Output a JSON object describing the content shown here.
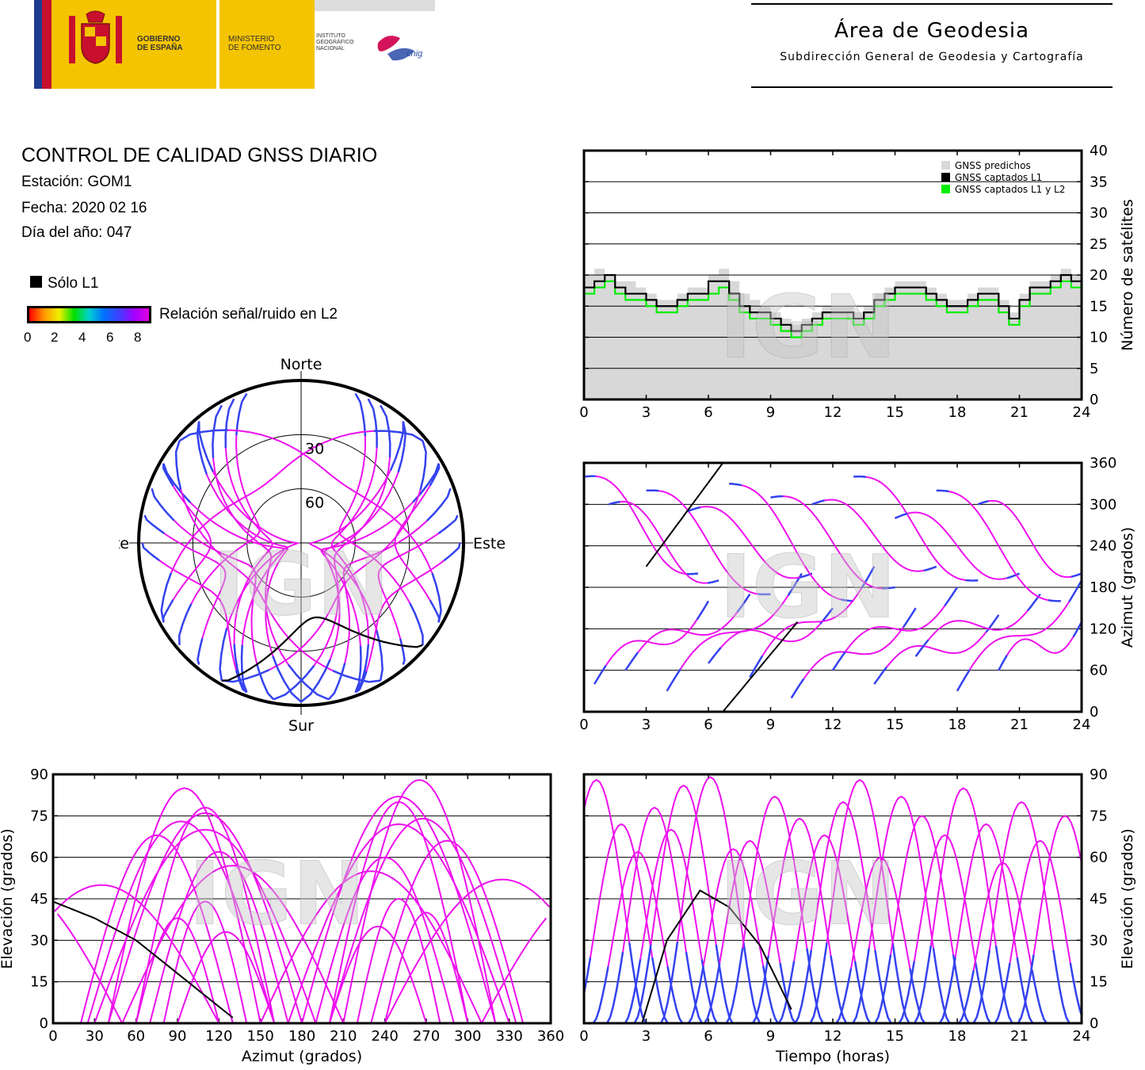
{
  "header": {
    "gobierno": [
      "GOBIERNO",
      "DE ESPAÑA"
    ],
    "ministerio": [
      "MINISTERIO",
      "DE FOMENTO"
    ],
    "instituto": [
      "INSTITUTO",
      "GEOGRÁFICO",
      "NACIONAL"
    ],
    "cnig": "cnig",
    "area_title": "Área de Geodesia",
    "area_subtitle": "Subdirección General de Geodesia y Cartografía",
    "colors": {
      "flag_red": "#c8102e",
      "flag_yellow": "#ffc400",
      "logo_yellow": "#f5c400",
      "eu_blue": "#1d3c8f"
    }
  },
  "info": {
    "title": "CONTROL DE CALIDAD GNSS DIARIO",
    "station": "Estación: GOM1",
    "date": "Fecha: 2020 02 16",
    "doy": "Día del año: 047"
  },
  "legend": {
    "solo_l1": "Sólo L1",
    "snr_label": "Relación señal/ruido en L2",
    "snr_ticks": [
      "0",
      "2",
      "4",
      "6",
      "8"
    ],
    "snr_colors": [
      "#ff0000",
      "#ff9900",
      "#f0f000",
      "#00e000",
      "#00d0d0",
      "#0070ff",
      "#4040ff",
      "#a000ff",
      "#e000e0"
    ]
  },
  "watermark": "IGN",
  "chart_data": [
    {
      "id": "satellites",
      "type": "area",
      "x_ticks": [
        "0",
        "3",
        "6",
        "9",
        "12",
        "15",
        "18",
        "21",
        "24"
      ],
      "y_ticks": [
        "0",
        "5",
        "10",
        "15",
        "20",
        "25",
        "30",
        "35",
        "40"
      ],
      "xlim": [
        0,
        24
      ],
      "ylim": [
        0,
        40
      ],
      "ylabel": "Número de satélites",
      "legend": [
        "GNSS predichos",
        "GNSS captados L1",
        "GNSS captados L1 y L2"
      ],
      "colors": {
        "predicted": "#d8d8d8",
        "l1": "#000000",
        "l1l2": "#00ee00"
      },
      "x": [
        0,
        0.5,
        1,
        1.5,
        2,
        2.5,
        3,
        3.5,
        4,
        4.5,
        5,
        5.5,
        6,
        6.5,
        7,
        7.5,
        8,
        8.5,
        9,
        9.5,
        10,
        10.5,
        11,
        11.5,
        12,
        12.5,
        13,
        13.5,
        14,
        14.5,
        15,
        15.5,
        16,
        16.5,
        17,
        17.5,
        18,
        18.5,
        19,
        19.5,
        20,
        20.5,
        21,
        21.5,
        22,
        22.5,
        23,
        23.5,
        24
      ],
      "predicted": [
        20,
        21,
        20,
        19,
        19,
        18,
        17,
        16,
        16,
        17,
        18,
        18,
        20,
        21,
        19,
        17,
        16,
        15,
        14,
        13,
        12,
        13,
        14,
        15,
        15,
        15,
        14,
        15,
        17,
        18,
        19,
        19,
        19,
        18,
        17,
        16,
        16,
        17,
        18,
        18,
        16,
        14,
        17,
        19,
        19,
        20,
        21,
        20,
        19
      ],
      "l1": [
        18,
        19,
        20,
        18,
        17,
        17,
        16,
        15,
        15,
        16,
        17,
        17,
        19,
        19,
        17,
        15,
        14,
        14,
        13,
        12,
        11,
        12,
        13,
        14,
        14,
        14,
        13,
        14,
        16,
        17,
        18,
        18,
        18,
        17,
        16,
        15,
        15,
        16,
        17,
        17,
        15,
        13,
        16,
        18,
        18,
        19,
        20,
        19,
        18
      ],
      "l1l2": [
        17,
        18,
        19,
        17,
        16,
        16,
        15,
        14,
        14,
        15,
        16,
        16,
        17,
        18,
        16,
        14,
        13,
        13,
        12,
        11,
        10,
        11,
        12,
        13,
        13,
        13,
        12,
        13,
        15,
        16,
        17,
        17,
        17,
        16,
        15,
        14,
        14,
        15,
        16,
        16,
        14,
        12,
        15,
        17,
        17,
        18,
        19,
        18,
        17
      ]
    },
    {
      "id": "skyplot",
      "type": "scatter",
      "labels": {
        "north": "Norte",
        "south": "Sur",
        "east": "Este",
        "west": "Oeste",
        "r30": "30",
        "r60": "60"
      },
      "tracks": [
        {
          "az0": 320,
          "az1": 210,
          "elmax": 88
        },
        {
          "az0": 300,
          "az1": 200,
          "elmax": 80
        },
        {
          "az0": 330,
          "az1": 170,
          "elmax": 72
        },
        {
          "az0": 40,
          "az1": 150,
          "elmax": 85
        },
        {
          "az0": 60,
          "az1": 160,
          "elmax": 78
        },
        {
          "az0": 30,
          "az1": 190,
          "elmax": 70
        },
        {
          "az0": 290,
          "az1": 190,
          "elmax": 60
        },
        {
          "az0": 70,
          "az1": 170,
          "elmax": 62
        },
        {
          "az0": 310,
          "az1": 150,
          "elmax": 55
        },
        {
          "az0": 50,
          "az1": 210,
          "elmax": 57
        },
        {
          "az0": 280,
          "az1": 220,
          "elmax": 45
        },
        {
          "az0": 80,
          "az1": 140,
          "elmax": 44
        },
        {
          "az0": 340,
          "az1": 230,
          "elmax": 66
        },
        {
          "az0": 20,
          "az1": 130,
          "elmax": 68
        },
        {
          "az0": 300,
          "az1": 240,
          "elmax": 40
        },
        {
          "az0": 60,
          "az1": 120,
          "elmax": 38
        },
        {
          "az0": 320,
          "az1": 180,
          "elmax": 82
        },
        {
          "az0": 40,
          "az1": 180,
          "elmax": 76
        },
        {
          "az0": 270,
          "az1": 200,
          "elmax": 35
        },
        {
          "az0": 90,
          "az1": 160,
          "elmax": 33
        },
        {
          "az0": 310,
          "az1": 120,
          "elmax": 50
        },
        {
          "az0": 50,
          "az1": 240,
          "elmax": 52
        },
        {
          "az0": 335,
          "az1": 200,
          "elmax": 74
        },
        {
          "az0": 25,
          "az1": 160,
          "elmax": 73
        }
      ],
      "l1_track": {
        "az0": 210,
        "az1": 130,
        "elmax": 48
      }
    },
    {
      "id": "azimuth_time",
      "type": "scatter",
      "x_ticks": [
        "0",
        "3",
        "6",
        "9",
        "12",
        "15",
        "18",
        "21",
        "24"
      ],
      "y_ticks": [
        "0",
        "60",
        "120",
        "180",
        "240",
        "300",
        "360"
      ],
      "xlim": [
        0,
        24
      ],
      "ylim": [
        0,
        360
      ],
      "ylabel": "Azimut (grados)",
      "tracks": [
        {
          "t0": 0.0,
          "t1": 5.5,
          "a0": 340,
          "a1": 200
        },
        {
          "t0": 0.5,
          "t1": 6.0,
          "a0": 40,
          "a1": 160
        },
        {
          "t0": 1.2,
          "t1": 6.5,
          "a0": 300,
          "a1": 190
        },
        {
          "t0": 2.0,
          "t1": 8.0,
          "a0": 60,
          "a1": 170
        },
        {
          "t0": 3.0,
          "t1": 9.0,
          "a0": 320,
          "a1": 170
        },
        {
          "t0": 4.0,
          "t1": 10.5,
          "a0": 30,
          "a1": 200
        },
        {
          "t0": 5.0,
          "t1": 11.0,
          "a0": 290,
          "a1": 200
        },
        {
          "t0": 6.0,
          "t1": 12.0,
          "a0": 70,
          "a1": 150
        },
        {
          "t0": 7.0,
          "t1": 13.0,
          "a0": 330,
          "a1": 160
        },
        {
          "t0": 8.0,
          "t1": 14.0,
          "a0": 50,
          "a1": 210
        },
        {
          "t0": 9.0,
          "t1": 15.0,
          "a0": 310,
          "a1": 180
        },
        {
          "t0": 10.0,
          "t1": 16.0,
          "a0": 20,
          "a1": 150
        },
        {
          "t0": 11.0,
          "t1": 17.0,
          "a0": 300,
          "a1": 210
        },
        {
          "t0": 12.0,
          "t1": 18.0,
          "a0": 60,
          "a1": 180
        },
        {
          "t0": 13.0,
          "t1": 19.0,
          "a0": 340,
          "a1": 190
        },
        {
          "t0": 14.0,
          "t1": 20.0,
          "a0": 40,
          "a1": 140
        },
        {
          "t0": 15.0,
          "t1": 21.0,
          "a0": 280,
          "a1": 200
        },
        {
          "t0": 16.0,
          "t1": 22.0,
          "a0": 80,
          "a1": 170
        },
        {
          "t0": 17.0,
          "t1": 23.0,
          "a0": 320,
          "a1": 160
        },
        {
          "t0": 18.0,
          "t1": 24.0,
          "a0": 30,
          "a1": 190
        },
        {
          "t0": 19.0,
          "t1": 24.0,
          "a0": 300,
          "a1": 200
        },
        {
          "t0": 20.0,
          "t1": 24.0,
          "a0": 60,
          "a1": 130
        }
      ],
      "l1_tracks": [
        {
          "t0": 3.0,
          "t1": 6.7,
          "a0": 210,
          "a1": 360
        },
        {
          "t0": 6.7,
          "t1": 10.3,
          "a0": 0,
          "a1": 130
        }
      ]
    },
    {
      "id": "elevation_azimuth",
      "type": "scatter",
      "x_ticks": [
        "0",
        "30",
        "60",
        "90",
        "120",
        "150",
        "180",
        "210",
        "240",
        "270",
        "300",
        "330",
        "360"
      ],
      "y_ticks": [
        "0",
        "15",
        "30",
        "45",
        "60",
        "75",
        "90"
      ],
      "xlim": [
        0,
        360
      ],
      "ylim": [
        0,
        90
      ],
      "xlabel": "Azimut (grados)",
      "ylabel": "Elevación (grados)",
      "l1_track": [
        [
          0,
          44
        ],
        [
          30,
          38
        ],
        [
          60,
          30
        ],
        [
          90,
          18
        ],
        [
          120,
          6
        ],
        [
          130,
          2
        ]
      ]
    },
    {
      "id": "elevation_time",
      "type": "scatter",
      "x_ticks": [
        "0",
        "3",
        "6",
        "9",
        "12",
        "15",
        "18",
        "21",
        "24"
      ],
      "y_ticks": [
        "0",
        "15",
        "30",
        "45",
        "60",
        "75",
        "90"
      ],
      "xlim": [
        0,
        24
      ],
      "ylim": [
        0,
        90
      ],
      "xlabel": "Tiempo (horas)",
      "ylabel": "Elevación (grados)",
      "passes": [
        {
          "t": 0.6,
          "el": 88
        },
        {
          "t": 1.8,
          "el": 72
        },
        {
          "t": 2.6,
          "el": 62
        },
        {
          "t": 3.4,
          "el": 78
        },
        {
          "t": 4.2,
          "el": 70
        },
        {
          "t": 4.8,
          "el": 86
        },
        {
          "t": 6.1,
          "el": 89
        },
        {
          "t": 7.2,
          "el": 63
        },
        {
          "t": 8.0,
          "el": 66
        },
        {
          "t": 9.2,
          "el": 82
        },
        {
          "t": 10.4,
          "el": 74
        },
        {
          "t": 11.6,
          "el": 68
        },
        {
          "t": 12.5,
          "el": 80
        },
        {
          "t": 13.3,
          "el": 88
        },
        {
          "t": 14.3,
          "el": 60
        },
        {
          "t": 15.3,
          "el": 82
        },
        {
          "t": 16.3,
          "el": 75
        },
        {
          "t": 17.4,
          "el": 68
        },
        {
          "t": 18.3,
          "el": 85
        },
        {
          "t": 19.4,
          "el": 72
        },
        {
          "t": 20.2,
          "el": 58
        },
        {
          "t": 21.1,
          "el": 80
        },
        {
          "t": 22.0,
          "el": 66
        },
        {
          "t": 23.2,
          "el": 75
        }
      ],
      "l1_track": [
        [
          2.8,
          0
        ],
        [
          4.0,
          30
        ],
        [
          5.6,
          48
        ],
        [
          7.0,
          42
        ],
        [
          8.5,
          28
        ],
        [
          10.0,
          5
        ]
      ]
    }
  ]
}
